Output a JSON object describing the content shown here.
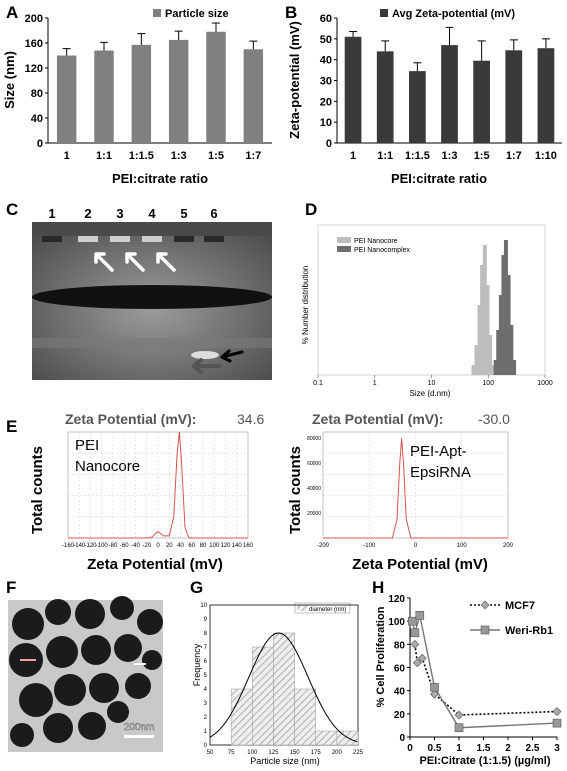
{
  "panel_labels": {
    "A": "A",
    "B": "B",
    "C": "C",
    "D": "D",
    "E": "E",
    "F": "F",
    "G": "G",
    "H": "H"
  },
  "chart_data": [
    {
      "panel": "A",
      "type": "bar",
      "categories": [
        "1",
        "1:1",
        "1:1.5",
        "1:3",
        "1:5",
        "1:7"
      ],
      "values": [
        140,
        148,
        157,
        165,
        178,
        150
      ],
      "errors": [
        11,
        13,
        18,
        14,
        14,
        13
      ],
      "xlabel": "PEI:citrate ratio",
      "ylabel": "Size (nm)",
      "ylim": [
        0,
        200
      ],
      "yticks": [
        "0",
        "40",
        "80",
        "120",
        "160",
        "200"
      ],
      "legend": "Particle size",
      "bar_color": "#808080"
    },
    {
      "panel": "B",
      "type": "bar",
      "categories": [
        "1",
        "1:1",
        "1:1.5",
        "1:3",
        "1:5",
        "1:7",
        "1:10"
      ],
      "values": [
        51,
        44,
        34.5,
        47,
        39.5,
        44.5,
        45.5
      ],
      "errors": [
        2.5,
        5,
        4,
        8.5,
        9.5,
        5,
        4.5
      ],
      "xlabel": "PEI:citrate ratio",
      "ylabel": "Zeta-potential (mV)",
      "ylim": [
        0,
        60
      ],
      "yticks": [
        "0",
        "10",
        "20",
        "30",
        "40",
        "50",
        "60"
      ],
      "legend": "Avg Zeta-potential (mV)",
      "bar_color": "#3a3a3a"
    },
    {
      "panel": "D",
      "type": "bar",
      "xlabel": "Size (d.nm)",
      "ylabel": "% Number distribution",
      "xlim": [
        0.1,
        1000
      ],
      "xticks": [
        "0.1",
        "1",
        "10",
        "100",
        "1000"
      ],
      "series": [
        {
          "name": "PEI Nanocore",
          "x": [
            55,
            62,
            70,
            78,
            87,
            97,
            108,
            120
          ],
          "values": [
            2,
            6,
            14,
            22,
            26,
            18,
            8,
            2
          ],
          "color": "#bdbdbd"
        },
        {
          "name": "PEI Nanocomplex",
          "x": [
            135,
            150,
            167,
            185,
            205,
            228,
            255,
            285
          ],
          "values": [
            3,
            9,
            16,
            24,
            27,
            20,
            10,
            3
          ],
          "color": "#6e6e6e"
        }
      ]
    },
    {
      "panel": "E1",
      "type": "line",
      "title": "Zeta Potential (mV):",
      "title_value": "34.6",
      "annotation": [
        "PEI",
        "Nanocore"
      ],
      "xlabel": "Zeta Potential (mV)",
      "ylabel": "Total counts",
      "xticks": [
        "-160",
        "-140",
        "-120",
        "-100",
        "-80",
        "-60",
        "-40",
        "-20",
        "0",
        "20",
        "40",
        "60",
        "80",
        "100",
        "120",
        "140",
        "160"
      ],
      "x": [
        -160,
        -20,
        -10,
        -5,
        0,
        10,
        20,
        28,
        34,
        38,
        42,
        48,
        55,
        160
      ],
      "y": [
        0,
        0,
        1,
        4,
        6,
        2,
        2,
        20,
        80,
        100,
        70,
        10,
        0,
        0
      ],
      "line_color": "#d9534f"
    },
    {
      "panel": "E2",
      "type": "line",
      "title": "Zeta Potential (mV):",
      "title_value": "-30.0",
      "annotation": [
        "PEI-Apt-",
        "EpsiRNA"
      ],
      "xlabel": "Zeta Potential (mV)",
      "ylabel": "Total counts",
      "xticks": [
        "-200",
        "-100",
        "0",
        "100",
        "200"
      ],
      "yticks": [
        "80000",
        "60000",
        "40000",
        "20000"
      ],
      "x": [
        -200,
        -50,
        -40,
        -34,
        -30,
        -26,
        -20,
        -10,
        200
      ],
      "y": [
        0,
        0,
        15000,
        60000,
        80000,
        60000,
        15000,
        0,
        0
      ],
      "line_color": "#d9534f"
    },
    {
      "panel": "G",
      "type": "bar",
      "xlabel": "Particle size (nm)",
      "ylabel": "Frequency",
      "legend": "diameter (nm)",
      "categories": [
        "75-100",
        "100-125",
        "125-150",
        "150-175",
        "175-200",
        "200-225"
      ],
      "values": [
        4,
        7,
        8,
        4,
        1,
        1
      ],
      "xticks": [
        "50",
        "75",
        "100",
        "125",
        "150",
        "175",
        "200",
        "225"
      ],
      "ylim": [
        0,
        10
      ],
      "yticks": [
        "0",
        "1",
        "2",
        "3",
        "4",
        "5",
        "6",
        "7",
        "8",
        "9",
        "10"
      ]
    },
    {
      "panel": "H",
      "type": "line",
      "xlabel": "PEI:Citrate (1:1.5) (µg/ml)",
      "ylabel": "% Cell Proliferation",
      "xlim": [
        0,
        3
      ],
      "ylim": [
        0,
        120
      ],
      "xticks": [
        "0",
        "0.5",
        "1",
        "1.5",
        "2",
        "2.5",
        "3"
      ],
      "yticks": [
        "0",
        "20",
        "40",
        "60",
        "80",
        "100",
        "120"
      ],
      "series": [
        {
          "name": "MCF7",
          "x": [
            0.1,
            0.15,
            0.25,
            0.5,
            1,
            3
          ],
          "values": [
            80,
            64,
            68,
            37,
            19,
            22
          ]
        },
        {
          "name": "Weri-Rb1",
          "x": [
            0.05,
            0.1,
            0.2,
            0.5,
            1,
            3
          ],
          "values": [
            100,
            90,
            105,
            43,
            8,
            12
          ]
        }
      ]
    }
  ],
  "gel": {
    "lanes": [
      "1",
      "2",
      "3",
      "4",
      "5",
      "6"
    ]
  },
  "micrograph": {
    "scale_bar": "200nm"
  }
}
